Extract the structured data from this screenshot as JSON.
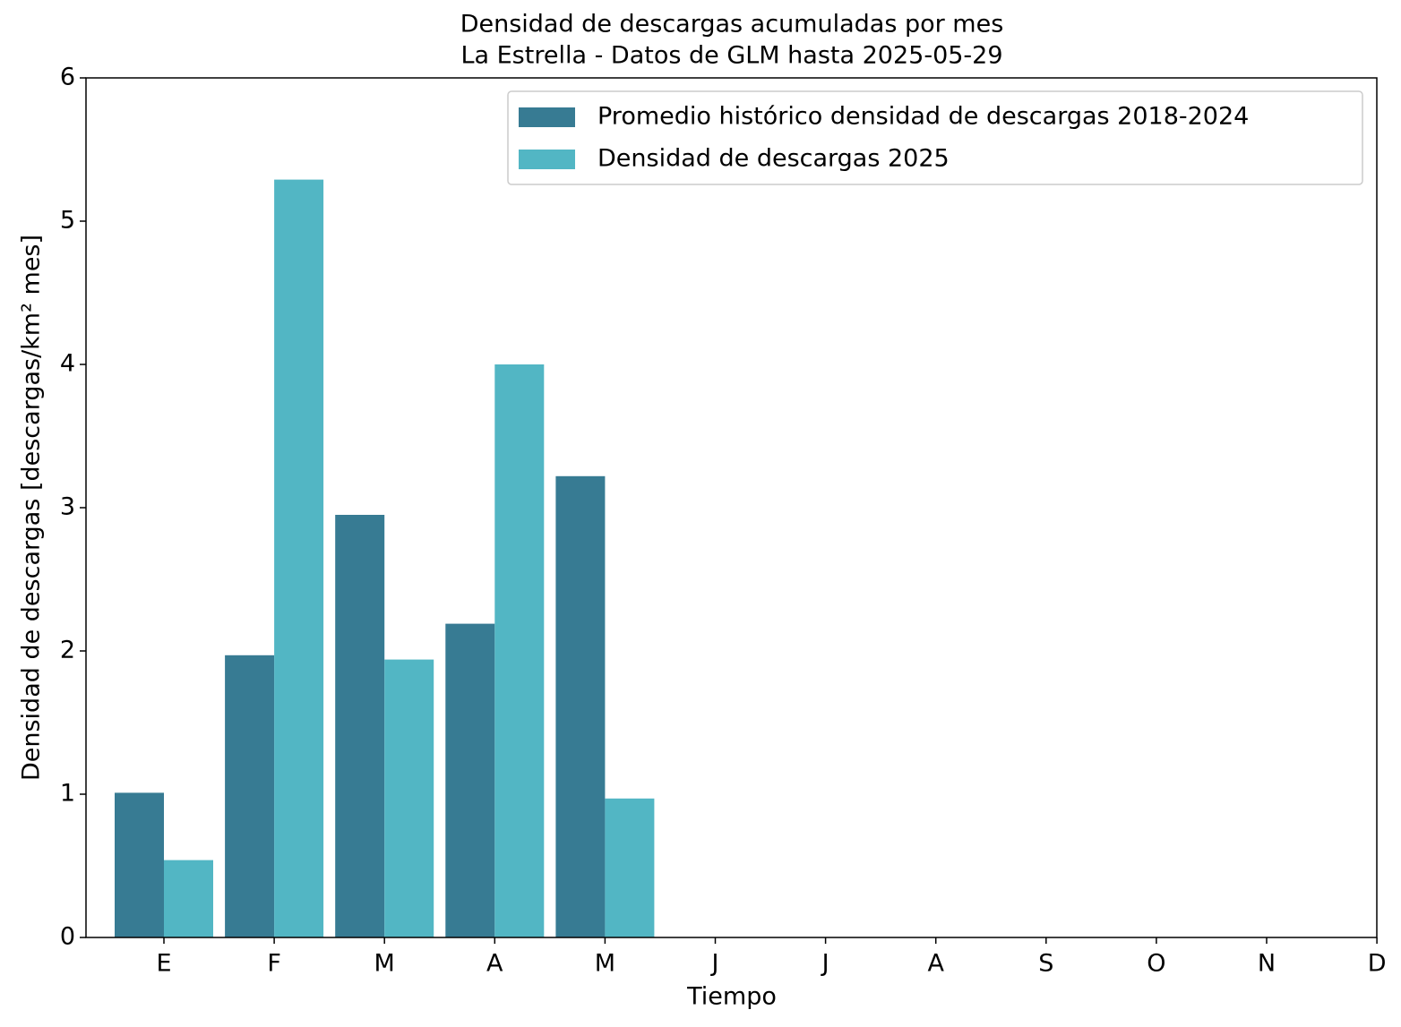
{
  "chart_data": {
    "type": "bar",
    "title": "Densidad de descargas acumuladas por mes",
    "subtitle": "La Estrella - Datos de GLM hasta 2025-05-29",
    "x_label": "Tiempo",
    "y_label": "Densidad de descargas [descargas/km² mes]",
    "categories": [
      "E",
      "F",
      "M",
      "A",
      "M",
      "J",
      "J",
      "A",
      "S",
      "O",
      "N",
      "D"
    ],
    "series": [
      {
        "name": "Promedio histórico densidad de descargas 2018-2024",
        "color": "#377b93",
        "values": [
          1.01,
          1.97,
          2.95,
          2.19,
          3.22,
          null,
          null,
          null,
          null,
          null,
          null,
          null
        ]
      },
      {
        "name": "Densidad de descargas 2025",
        "color": "#52b6c4",
        "values": [
          0.54,
          5.29,
          1.94,
          4.0,
          0.97,
          null,
          null,
          null,
          null,
          null,
          null,
          null
        ]
      }
    ],
    "ylim": [
      0,
      6
    ],
    "yticks": [
      0,
      1,
      2,
      3,
      4,
      5,
      6
    ],
    "grid": false,
    "legend": "upper right"
  }
}
